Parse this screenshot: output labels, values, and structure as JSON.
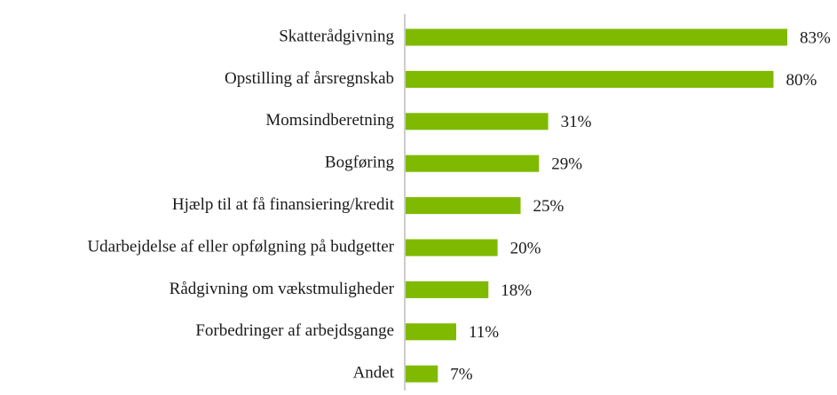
{
  "chart_data": {
    "type": "barh",
    "categories": [
      "Skatterådgivning",
      "Opstilling af årsregnskab",
      "Momsindberetning",
      "Bogføring",
      "Hjælp til at få finansiering/kredit",
      "Udarbejdelse af eller opfølgning på budgetter",
      "Rådgivning om vækstmuligheder",
      "Forbedringer af arbejdsgange",
      "Andet"
    ],
    "values": [
      83,
      80,
      31,
      29,
      25,
      20,
      18,
      11,
      7
    ],
    "value_labels": [
      "83%",
      "80%",
      "31%",
      "29%",
      "25%",
      "20%",
      "18%",
      "11%",
      "7%"
    ],
    "color": "#7fba00"
  }
}
